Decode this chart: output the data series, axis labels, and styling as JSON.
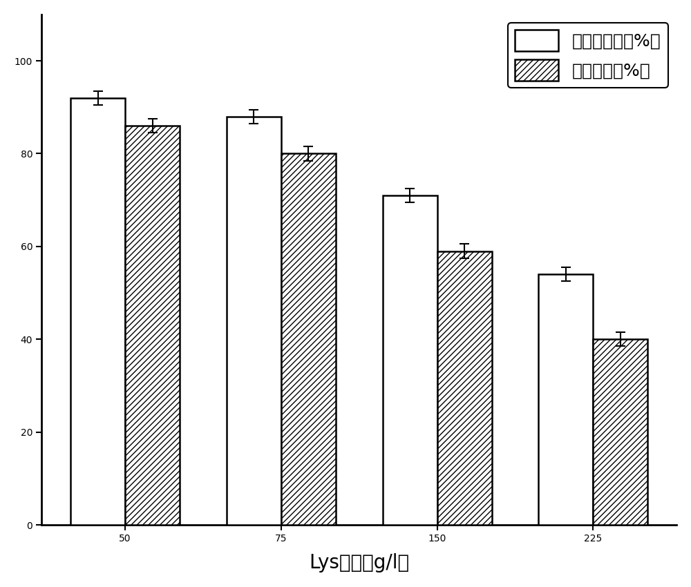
{
  "categories": [
    "50",
    "75",
    "150",
    "225"
  ],
  "bar1_values": [
    92,
    88,
    71,
    54
  ],
  "bar2_values": [
    86,
    80,
    59,
    40
  ],
  "bar1_errors": [
    1.5,
    1.5,
    1.5,
    1.5
  ],
  "bar2_errors": [
    1.5,
    1.5,
    1.5,
    1.5
  ],
  "bar1_label": "戊二胺得率（%）",
  "bar2_label": "甲酸得率（%）",
  "xlabel": "Lys浓度（g/l）",
  "ylabel": "",
  "ylim": [
    0,
    110
  ],
  "yticks": [
    0,
    20,
    40,
    60,
    80,
    100
  ],
  "bar_width": 0.35,
  "bar1_color": "#ffffff",
  "bar2_color": "#ffffff",
  "bar1_edgecolor": "#000000",
  "bar2_edgecolor": "#000000",
  "hatch_pattern": "////",
  "figure_width": 10,
  "figure_height": 8.5,
  "dpi": 100,
  "legend_fontsize": 18,
  "tick_fontsize": 20,
  "xlabel_fontsize": 20,
  "spine_linewidth": 2.0,
  "tick_linewidth": 1.5
}
